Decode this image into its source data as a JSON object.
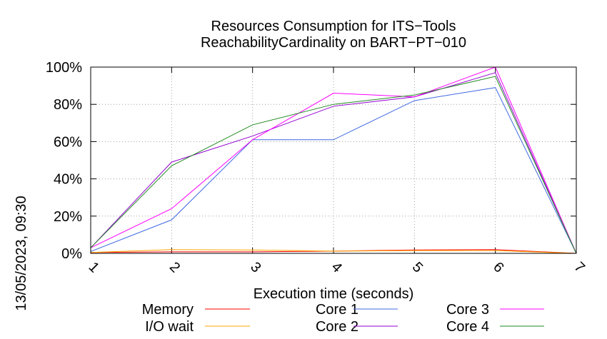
{
  "chart_data": {
    "type": "line",
    "title_lines": [
      "Resources Consumption for ITS−Tools",
      "ReachabilityCardinality on BART−PT−010"
    ],
    "xlabel": "Execution time (seconds)",
    "ylabel": "",
    "side_label": "13/05/2023, 09:30",
    "x": [
      1,
      2,
      3,
      4,
      5,
      6,
      7
    ],
    "xlim": [
      1,
      7
    ],
    "ylim": [
      0,
      100
    ],
    "x_ticks": [
      "1",
      "2",
      "3",
      "4",
      "5",
      "6",
      "7"
    ],
    "y_ticks": [
      "0%",
      "20%",
      "40%",
      "60%",
      "80%",
      "100%"
    ],
    "grid": true,
    "legend_position": "bottom",
    "series": [
      {
        "name": "Memory",
        "color": "#ff0000",
        "values": [
          0.5,
          0.8,
          0.8,
          1.2,
          1.8,
          2.0,
          0.0
        ]
      },
      {
        "name": "I/O wait",
        "color": "#ffa500",
        "values": [
          0.5,
          2.0,
          1.8,
          1.2,
          1.5,
          1.5,
          0.0
        ]
      },
      {
        "name": "Core 1",
        "color": "#4169e1",
        "values": [
          1,
          18,
          61,
          61,
          82,
          89,
          0
        ]
      },
      {
        "name": "Core 2",
        "color": "#9400d3",
        "values": [
          3,
          49,
          63,
          79,
          84,
          97,
          0
        ]
      },
      {
        "name": "Core 3",
        "color": "#ff00ff",
        "values": [
          3,
          24,
          61,
          86,
          84,
          100,
          0
        ]
      },
      {
        "name": "Core 4",
        "color": "#228b22",
        "values": [
          3,
          47,
          69,
          80,
          85,
          95,
          0
        ]
      }
    ]
  }
}
